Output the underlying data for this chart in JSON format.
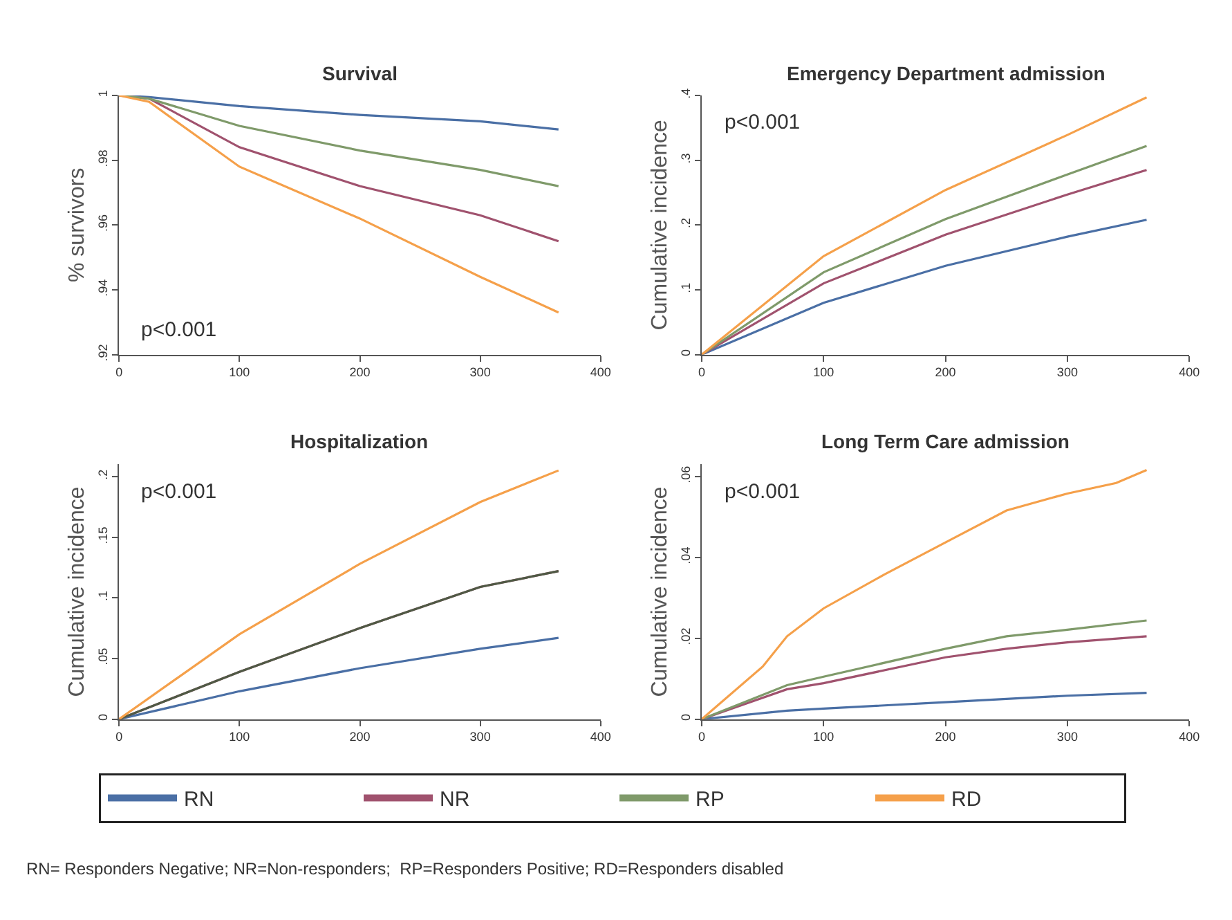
{
  "chart_data": [
    {
      "type": "line",
      "title": "Survival",
      "ylabel": "% survivors",
      "annotations": [
        "p<0.001",
        "RN= Responders Negative; NR=Non-responders;  RP=Responders Positive; RD=Responders disabled"
      ],
      "legend": "bottom",
      "x": [
        0,
        25,
        100,
        200,
        300,
        365
      ],
      "xlim": [
        0,
        400
      ],
      "xticks": [
        0,
        100,
        200,
        300,
        400
      ],
      "ylim": [
        0.92,
        1
      ],
      "yticks": [
        {
          "value": 0.92,
          "label": ".92"
        },
        {
          "value": 0.94,
          "label": ".94"
        },
        {
          "value": 0.96,
          "label": ".96"
        },
        {
          "value": 0.98,
          "label": ".98"
        },
        1
      ],
      "series": [
        {
          "name": "RN",
          "color": "#4a6fa5",
          "values": [
            1,
            0.9995,
            0.9967,
            0.994,
            0.992,
            0.9895
          ]
        },
        {
          "name": "NR",
          "color": "#a0526e",
          "values": [
            1,
            0.999,
            0.984,
            0.972,
            0.963,
            0.955
          ]
        },
        {
          "name": "RP",
          "color": "#7f9a6a",
          "values": [
            1,
            0.999,
            0.9906,
            0.983,
            0.977,
            0.972
          ]
        },
        {
          "name": "RD",
          "color": "#f5a04a",
          "values": [
            1,
            0.998,
            0.978,
            0.962,
            0.944,
            0.933
          ]
        }
      ]
    },
    {
      "type": "line",
      "title": "Emergency Department admission",
      "ylabel": "Cumulative incidence",
      "annotations": [
        "p<0.001"
      ],
      "x": [
        0,
        100,
        200,
        300,
        365
      ],
      "xlim": [
        0,
        400
      ],
      "xticks": [
        0,
        100,
        200,
        300,
        400
      ],
      "ylim": [
        0,
        0.4
      ],
      "yticks": [
        0,
        {
          "value": 0.1,
          "label": ".1"
        },
        {
          "value": 0.2,
          "label": ".2"
        },
        {
          "value": 0.3,
          "label": ".3"
        },
        {
          "value": 0.4,
          "label": ".4"
        }
      ],
      "series": [
        {
          "color": "#4a6fa5",
          "values": [
            0,
            0.08,
            0.137,
            0.182,
            0.208
          ]
        },
        {
          "color": "#a0526e",
          "values": [
            0,
            0.11,
            0.185,
            0.247,
            0.285
          ]
        },
        {
          "color": "#7f9a6a",
          "values": [
            0,
            0.127,
            0.209,
            0.278,
            0.322
          ]
        },
        {
          "color": "#f5a04a",
          "values": [
            0,
            0.152,
            0.254,
            0.339,
            0.397
          ]
        }
      ]
    },
    {
      "type": "line",
      "title": "Hospitalization",
      "ylabel": "Cumulative incidence",
      "annotations": [
        "p<0.001"
      ],
      "x": [
        0,
        100,
        200,
        300,
        365
      ],
      "xlim": [
        0,
        400
      ],
      "xticks": [
        0,
        100,
        200,
        300,
        400
      ],
      "ylim": [
        0,
        0.21
      ],
      "yticks": [
        0,
        {
          "value": 0.05,
          "label": ".05"
        },
        {
          "value": 0.1,
          "label": ".1"
        },
        {
          "value": 0.15,
          "label": ".15"
        },
        {
          "value": 0.2,
          "label": ".2"
        }
      ],
      "series": [
        {
          "color": "#4a6fa5",
          "values": [
            0,
            0.023,
            0.042,
            0.058,
            0.067
          ]
        },
        {
          "color": "#a0526e",
          "values": [
            0,
            0.039,
            0.075,
            0.109,
            0.122
          ]
        },
        {
          "color": "#4f5a45",
          "values": [
            0,
            0.039,
            0.075,
            0.109,
            0.122
          ]
        },
        {
          "color": "#f5a04a",
          "values": [
            0,
            0.07,
            0.128,
            0.179,
            0.205
          ]
        }
      ]
    },
    {
      "type": "line",
      "title": "Long Term Care admission",
      "ylabel": "Cumulative incidence",
      "annotations": [
        "p<0.001"
      ],
      "x": [
        0,
        70,
        100,
        200,
        250,
        300,
        365
      ],
      "xlim": [
        0,
        400
      ],
      "xticks": [
        0,
        100,
        200,
        300,
        400
      ],
      "ylim": [
        0,
        0.063
      ],
      "yticks": [
        0,
        {
          "value": 0.02,
          "label": ".02"
        },
        {
          "value": 0.04,
          "label": ".04"
        },
        {
          "value": 0.06,
          "label": ".06"
        }
      ],
      "series": [
        {
          "color": "#4a6fa5",
          "values": [
            0,
            0.0021,
            0.0026,
            0.0042,
            0.005,
            0.0058,
            0.0065
          ]
        },
        {
          "color": "#a0526e",
          "values": [
            0,
            0.0074,
            0.0089,
            0.0153,
            0.0174,
            0.019,
            0.0205
          ]
        },
        {
          "color": "#7f9a6a",
          "values": [
            0,
            0.0084,
            0.0105,
            0.0174,
            0.0205,
            0.0221,
            0.0244
          ]
        },
        {
          "color": "#f5a04a",
          "x": [
            0,
            50,
            70,
            100,
            150,
            200,
            250,
            300,
            340,
            365
          ],
          "values": [
            0,
            0.013,
            0.0205,
            0.0274,
            0.0358,
            0.0437,
            0.0516,
            0.0558,
            0.0584,
            0.0616
          ]
        }
      ]
    }
  ]
}
